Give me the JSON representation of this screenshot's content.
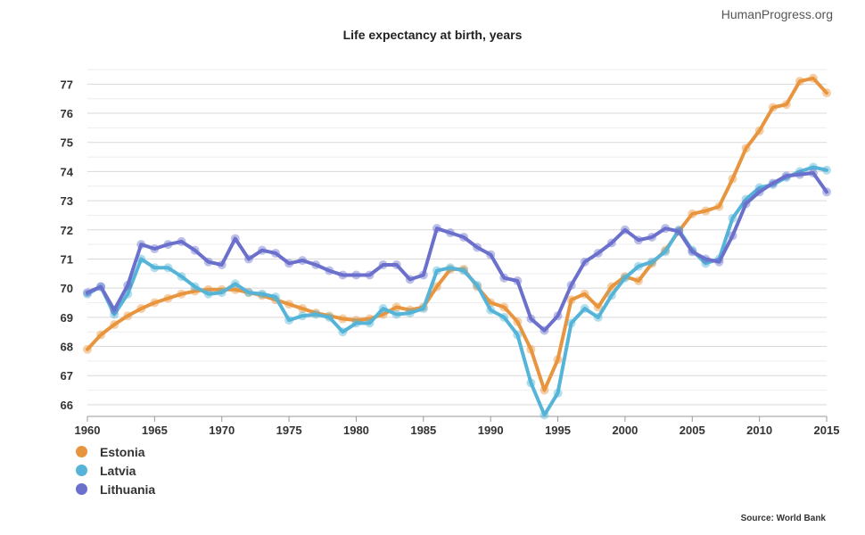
{
  "watermark": "HumanProgress.org",
  "source": "Source: World Bank",
  "chart_data": {
    "type": "line",
    "title": "Life expectancy at birth, years",
    "xlabel": "",
    "ylabel": "",
    "xlim": [
      1960,
      2015
    ],
    "ylim": [
      65.6,
      77.5
    ],
    "x_ticks": [
      1960,
      1965,
      1970,
      1975,
      1980,
      1985,
      1990,
      1995,
      2000,
      2005,
      2010,
      2015
    ],
    "y_ticks": [
      66,
      67,
      68,
      69,
      70,
      71,
      72,
      73,
      74,
      75,
      76,
      77
    ],
    "grid": "horizontal",
    "legend_position": "bottom-left",
    "x": [
      1960,
      1961,
      1962,
      1963,
      1964,
      1965,
      1966,
      1967,
      1968,
      1969,
      1970,
      1971,
      1972,
      1973,
      1974,
      1975,
      1976,
      1977,
      1978,
      1979,
      1980,
      1981,
      1982,
      1983,
      1984,
      1985,
      1986,
      1987,
      1988,
      1989,
      1990,
      1991,
      1992,
      1993,
      1994,
      1995,
      1996,
      1997,
      1998,
      1999,
      2000,
      2001,
      2002,
      2003,
      2004,
      2005,
      2006,
      2007,
      2008,
      2009,
      2010,
      2011,
      2012,
      2013,
      2014,
      2015
    ],
    "series": [
      {
        "name": "Estonia",
        "color": "#e8953f",
        "values": [
          67.9,
          68.4,
          68.75,
          69.05,
          69.3,
          69.5,
          69.65,
          69.8,
          69.9,
          69.95,
          69.95,
          69.95,
          69.85,
          69.75,
          69.6,
          69.45,
          69.3,
          69.15,
          69.05,
          68.95,
          68.9,
          68.95,
          69.1,
          69.35,
          69.25,
          69.35,
          70.05,
          70.65,
          70.65,
          70.05,
          69.5,
          69.35,
          68.85,
          67.9,
          66.5,
          67.55,
          69.6,
          69.8,
          69.35,
          70.05,
          70.4,
          70.25,
          70.85,
          71.3,
          71.95,
          72.55,
          72.65,
          72.8,
          73.75,
          74.8,
          75.4,
          76.2,
          76.3,
          77.1,
          77.2,
          76.7
        ]
      },
      {
        "name": "Latvia",
        "color": "#55b4d8",
        "values": [
          69.8,
          70.05,
          69.1,
          69.8,
          71.0,
          70.7,
          70.7,
          70.4,
          70.05,
          69.8,
          69.85,
          70.15,
          69.85,
          69.8,
          69.7,
          68.9,
          69.05,
          69.1,
          69.0,
          68.5,
          68.8,
          68.8,
          69.3,
          69.1,
          69.15,
          69.3,
          70.6,
          70.7,
          70.6,
          70.1,
          69.25,
          69.0,
          68.4,
          66.75,
          65.65,
          66.4,
          68.8,
          69.3,
          69.0,
          69.75,
          70.35,
          70.75,
          70.9,
          71.25,
          72.0,
          71.3,
          70.85,
          71.0,
          72.4,
          73.05,
          73.45,
          73.55,
          73.8,
          74.0,
          74.15,
          74.05
        ]
      },
      {
        "name": "Lithuania",
        "color": "#6a70cc",
        "values": [
          69.85,
          70.05,
          69.25,
          70.1,
          71.5,
          71.35,
          71.5,
          71.6,
          71.3,
          70.9,
          70.8,
          71.7,
          71.0,
          71.3,
          71.2,
          70.85,
          70.95,
          70.8,
          70.6,
          70.45,
          70.45,
          70.45,
          70.8,
          70.8,
          70.3,
          70.45,
          72.05,
          71.9,
          71.75,
          71.4,
          71.15,
          70.35,
          70.25,
          68.95,
          68.55,
          69.05,
          70.1,
          70.9,
          71.2,
          71.55,
          72.0,
          71.65,
          71.75,
          72.05,
          71.95,
          71.25,
          71.0,
          70.9,
          71.8,
          72.9,
          73.3,
          73.6,
          73.85,
          73.9,
          73.95,
          73.3
        ]
      }
    ]
  }
}
